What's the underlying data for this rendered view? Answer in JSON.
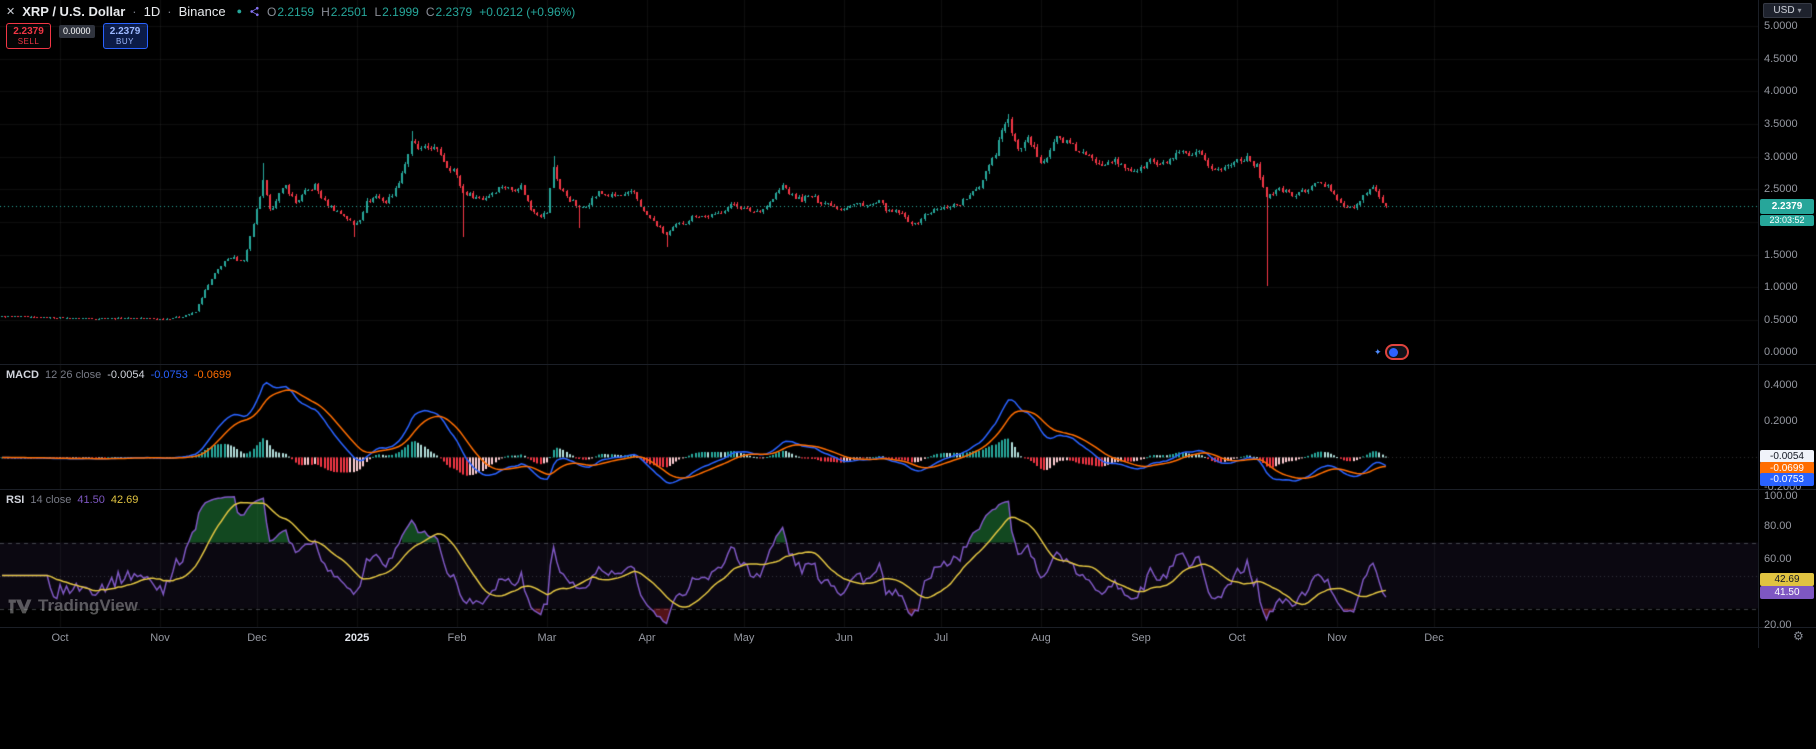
{
  "header": {
    "symbol": "XRP / U.S. Dollar",
    "sep": "·",
    "interval": "1D",
    "exchange": "Binance",
    "ohlc": {
      "o_label": "O",
      "o_value": "2.2159",
      "h_label": "H",
      "h_value": "2.2501",
      "l_label": "L",
      "l_value": "2.1999",
      "c_label": "C",
      "c_value": "2.2379",
      "change": "+0.0212 (+0.96%)"
    },
    "currency": "USD"
  },
  "trade_widget": {
    "sell_price": "2.2379",
    "sell_label": "SELL",
    "spread": "0.0000",
    "buy_price": "2.2379",
    "buy_label": "BUY"
  },
  "price_pane": {
    "ticks": [
      "5.0000",
      "4.5000",
      "4.0000",
      "3.5000",
      "3.0000",
      "2.5000",
      "2.0000",
      "1.5000",
      "1.0000",
      "0.5000",
      "0.0000"
    ],
    "last_price_label": "2.2379",
    "countdown": "23:03:52"
  },
  "macd_pane": {
    "title": "MACD",
    "params": "12 26 close",
    "hist_value": "-0.0054",
    "macd_value": "-0.0753",
    "signal_value": "-0.0699",
    "ticks": [
      "0.4000",
      "0.2000",
      "-0.2000"
    ],
    "badge_hist": "-0.0054",
    "badge_signal": "-0.0699",
    "badge_macd": "-0.0753"
  },
  "rsi_pane": {
    "title": "RSI",
    "params": "14 close",
    "rsi_value": "41.50",
    "ma_value": "42.69",
    "ticks": [
      "100.00",
      "80.00",
      "60.00",
      "20.00"
    ],
    "badge_ma": "42.69",
    "badge_rsi": "41.50"
  },
  "time_axis": {
    "labels": [
      "Oct",
      "Nov",
      "Dec",
      "2025",
      "Feb",
      "Mar",
      "Apr",
      "May",
      "Jun",
      "Jul",
      "Aug",
      "Sep",
      "Oct",
      "Nov",
      "Dec"
    ],
    "year_label": "2025"
  },
  "watermark": "TradingView",
  "icons": {
    "close": "✕",
    "status_dot": "●",
    "caret_down": "▾",
    "gear": "⚙",
    "sparkle": "✦"
  },
  "colors": {
    "up": "#26a69a",
    "down": "#f23645",
    "macd_line": "#2962ff",
    "signal_line": "#ff6d00",
    "hist_up": "#26a69a",
    "hist_up_fade": "#b2dfdb",
    "hist_down": "#f23645",
    "hist_down_fade": "#ffcdd2",
    "rsi_line": "#7e57c2",
    "rsi_ma": "#e0c341",
    "sell": "#f23645",
    "buy": "#2962ff",
    "axis_text": "#9598a1",
    "legend_text": "#d1d4dc"
  },
  "chart_data": {
    "type": "candlestick",
    "symbol": "XRP/USD",
    "exchange": "Binance",
    "interval": "1D",
    "price_axis_range": [
      0,
      5.4
    ],
    "macd_axis_range": [
      -0.2,
      0.51
    ],
    "rsi_axis_range": [
      20,
      100
    ],
    "last_close": 2.2379,
    "day_span": 429,
    "price_keypoints": [
      [
        0,
        0.55
      ],
      [
        10,
        0.54
      ],
      [
        18,
        0.53
      ],
      [
        30,
        0.52
      ],
      [
        42,
        0.53
      ],
      [
        50,
        0.51
      ],
      [
        56,
        0.55
      ],
      [
        60,
        0.62
      ],
      [
        63,
        0.95
      ],
      [
        66,
        1.2
      ],
      [
        69,
        1.4
      ],
      [
        72,
        1.45
      ],
      [
        75,
        1.4
      ],
      [
        78,
        1.95
      ],
      [
        80,
        2.4
      ],
      [
        81,
        2.6
      ],
      [
        83,
        2.15
      ],
      [
        85,
        2.35
      ],
      [
        88,
        2.55
      ],
      [
        91,
        2.3
      ],
      [
        94,
        2.45
      ],
      [
        97,
        2.55
      ],
      [
        100,
        2.3
      ],
      [
        103,
        2.2
      ],
      [
        106,
        2.1
      ],
      [
        109,
        1.95
      ],
      [
        111,
        2.05
      ],
      [
        113,
        2.3
      ],
      [
        116,
        2.4
      ],
      [
        119,
        2.3
      ],
      [
        122,
        2.5
      ],
      [
        125,
        2.9
      ],
      [
        127,
        3.2
      ],
      [
        130,
        3.1
      ],
      [
        133,
        3.15
      ],
      [
        136,
        3.05
      ],
      [
        138,
        2.85
      ],
      [
        140,
        2.8
      ],
      [
        143,
        2.45
      ],
      [
        146,
        2.4
      ],
      [
        149,
        2.35
      ],
      [
        152,
        2.45
      ],
      [
        155,
        2.55
      ],
      [
        158,
        2.5
      ],
      [
        161,
        2.55
      ],
      [
        164,
        2.2
      ],
      [
        167,
        2.1
      ],
      [
        169,
        2.15
      ],
      [
        171,
        2.85
      ],
      [
        173,
        2.5
      ],
      [
        176,
        2.35
      ],
      [
        179,
        2.2
      ],
      [
        182,
        2.3
      ],
      [
        185,
        2.45
      ],
      [
        188,
        2.4
      ],
      [
        192,
        2.4
      ],
      [
        196,
        2.45
      ],
      [
        199,
        2.15
      ],
      [
        200,
        2.1
      ],
      [
        203,
        1.95
      ],
      [
        206,
        1.8
      ],
      [
        209,
        1.95
      ],
      [
        212,
        2.0
      ],
      [
        215,
        2.1
      ],
      [
        218,
        2.08
      ],
      [
        221,
        2.1
      ],
      [
        224,
        2.2
      ],
      [
        227,
        2.28
      ],
      [
        230,
        2.2
      ],
      [
        233,
        2.15
      ],
      [
        236,
        2.2
      ],
      [
        239,
        2.35
      ],
      [
        242,
        2.55
      ],
      [
        245,
        2.4
      ],
      [
        248,
        2.35
      ],
      [
        251,
        2.4
      ],
      [
        254,
        2.3
      ],
      [
        257,
        2.28
      ],
      [
        260,
        2.2
      ],
      [
        263,
        2.25
      ],
      [
        266,
        2.28
      ],
      [
        269,
        2.25
      ],
      [
        272,
        2.3
      ],
      [
        275,
        2.15
      ],
      [
        278,
        2.15
      ],
      [
        281,
        2.02
      ],
      [
        283,
        1.95
      ],
      [
        286,
        2.1
      ],
      [
        289,
        2.18
      ],
      [
        291,
        2.2
      ],
      [
        294,
        2.25
      ],
      [
        297,
        2.28
      ],
      [
        300,
        2.4
      ],
      [
        303,
        2.55
      ],
      [
        306,
        2.9
      ],
      [
        308,
        3.05
      ],
      [
        310,
        3.45
      ],
      [
        312,
        3.55
      ],
      [
        314,
        3.2
      ],
      [
        316,
        3.1
      ],
      [
        318,
        3.25
      ],
      [
        320,
        3.1
      ],
      [
        322,
        2.95
      ],
      [
        324,
        3.0
      ],
      [
        327,
        3.3
      ],
      [
        329,
        3.25
      ],
      [
        332,
        3.15
      ],
      [
        335,
        3.05
      ],
      [
        338,
        2.95
      ],
      [
        341,
        2.9
      ],
      [
        344,
        2.95
      ],
      [
        347,
        2.85
      ],
      [
        350,
        2.8
      ],
      [
        353,
        2.8
      ],
      [
        356,
        2.95
      ],
      [
        359,
        2.85
      ],
      [
        362,
        2.95
      ],
      [
        365,
        3.05
      ],
      [
        368,
        3.0
      ],
      [
        371,
        3.05
      ],
      [
        374,
        2.85
      ],
      [
        377,
        2.8
      ],
      [
        380,
        2.85
      ],
      [
        383,
        2.95
      ],
      [
        386,
        3.0
      ],
      [
        389,
        2.85
      ],
      [
        392,
        2.4
      ],
      [
        394,
        2.45
      ],
      [
        397,
        2.5
      ],
      [
        400,
        2.4
      ],
      [
        403,
        2.45
      ],
      [
        406,
        2.55
      ],
      [
        409,
        2.6
      ],
      [
        412,
        2.5
      ],
      [
        416,
        2.25
      ],
      [
        418,
        2.2
      ],
      [
        421,
        2.3
      ],
      [
        424,
        2.55
      ],
      [
        426,
        2.45
      ],
      [
        428,
        2.3
      ],
      [
        429,
        2.2379
      ]
    ],
    "wick_events": [
      {
        "i": 81,
        "high": 2.9
      },
      {
        "i": 109,
        "low": 1.77
      },
      {
        "i": 127,
        "high": 3.4
      },
      {
        "i": 143,
        "low": 1.77
      },
      {
        "i": 171,
        "high": 3.01
      },
      {
        "i": 179,
        "low": 1.9
      },
      {
        "i": 206,
        "low": 1.61
      },
      {
        "i": 312,
        "high": 3.66
      },
      {
        "i": 392,
        "low": 1.02
      }
    ],
    "indicators": {
      "macd": {
        "fast": 12,
        "slow": 26,
        "signal": 9,
        "last_hist": -0.0054,
        "last_macd": -0.0753,
        "last_signal": -0.0699
      },
      "rsi": {
        "length": 14,
        "last": 41.5,
        "ma_last": 42.69,
        "upper_band": 70,
        "lower_band": 30
      }
    }
  }
}
